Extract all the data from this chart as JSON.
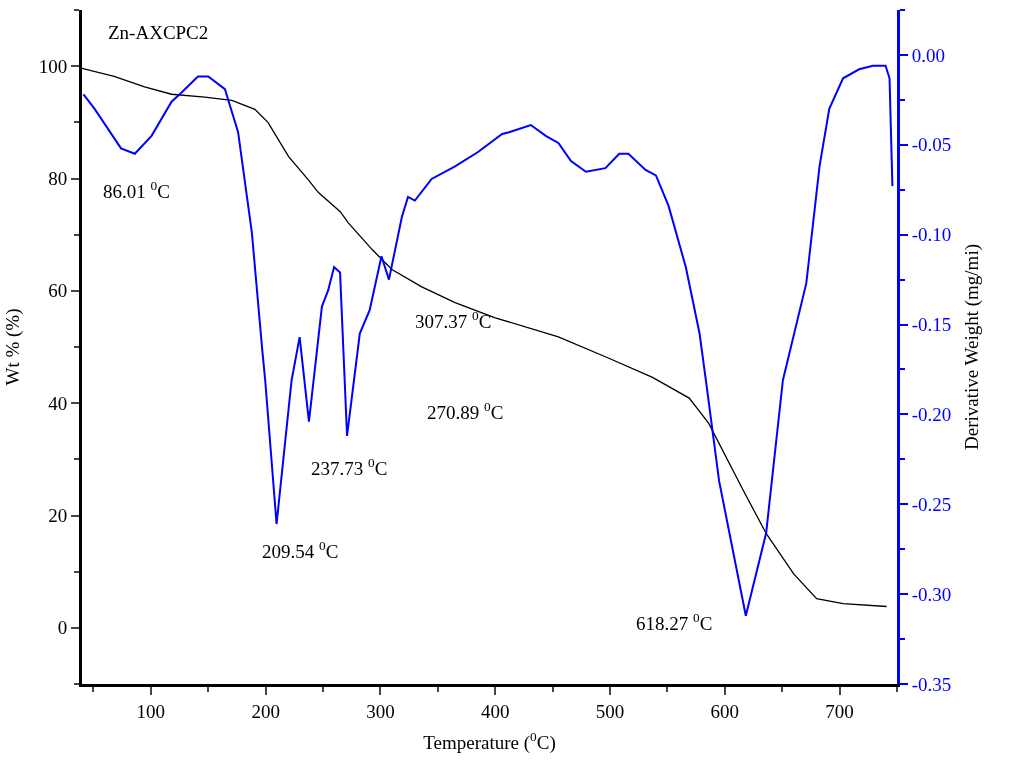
{
  "chart_data": {
    "type": "line",
    "title": "Zn-AXCPC2",
    "xlabel": "Temperature ($^{0}$C)",
    "ylabel": "Wt % (%)",
    "y2label": "Derivative Weight (mg/mi)",
    "xlim": [
      40,
      750
    ],
    "xticks": [
      100,
      200,
      300,
      400,
      500,
      600,
      700
    ],
    "ylim": [
      -10,
      110
    ],
    "yticks": [
      0,
      20,
      40,
      60,
      80,
      100
    ],
    "y2lim": [
      -0.35,
      0.025
    ],
    "y2ticks": [
      {
        "value": -0.35,
        "label": "-0.35"
      },
      {
        "value": -0.3,
        "label": "-0.30"
      },
      {
        "value": -0.25,
        "label": "-0.25"
      },
      {
        "value": -0.2,
        "label": "-0.20"
      },
      {
        "value": -0.15,
        "label": "-0.15"
      },
      {
        "value": -0.1,
        "label": "-0.10"
      },
      {
        "value": -0.05,
        "label": "-0.05"
      },
      {
        "value": 0,
        "label": "0.00"
      }
    ],
    "series": [
      {
        "color": "#000000",
        "x": [
          40,
          68,
          94.5,
          118,
          147,
          170.6,
          190.6,
          202,
          220,
          237,
          246,
          265,
          272,
          293,
          310,
          336,
          365,
          400,
          455,
          499,
          537,
          569,
          586,
          616,
          636,
          660,
          680,
          703,
          741
        ],
        "values": [
          99.6,
          98.2,
          96.3,
          95.0,
          94.5,
          93.9,
          92.3,
          90,
          83.9,
          79.8,
          77.5,
          74.1,
          72.1,
          67.3,
          63.8,
          60.7,
          57.9,
          55.2,
          51.8,
          48.0,
          44.6,
          40.9,
          36.4,
          24.5,
          16.8,
          9.6,
          5.2,
          4.3,
          3.8
        ]
      },
      {
        "color": "#0000ff",
        "axis": "y2",
        "x": [
          41.3,
          51,
          74,
          86,
          100.6,
          118,
          126.5,
          141,
          150,
          164.5,
          176,
          188,
          197,
          199.6,
          209.5,
          222.6,
          229.6,
          237.7,
          249,
          254.4,
          259.6,
          264.8,
          270.9,
          282,
          290.6,
          300.9,
          307.4,
          318.7,
          324,
          330,
          344.6,
          365,
          385,
          406,
          412,
          431,
          444,
          455,
          466,
          479,
          496,
          508,
          516,
          531,
          540,
          551,
          566,
          578,
          583.5,
          595,
          618.3,
          636,
          650.6,
          671,
          682.5,
          691,
          703,
          717,
          729,
          740,
          743.5,
          746
        ],
        "values": [
          -0.022,
          -0.03,
          -0.052,
          -0.055,
          -0.045,
          -0.026,
          -0.021,
          -0.012,
          -0.012,
          -0.019,
          -0.043,
          -0.099,
          -0.164,
          -0.181,
          -0.261,
          -0.181,
          -0.157,
          -0.204,
          -0.14,
          -0.131,
          -0.118,
          -0.121,
          -0.212,
          -0.155,
          -0.142,
          -0.112,
          -0.125,
          -0.09,
          -0.079,
          -0.081,
          -0.069,
          -0.062,
          -0.054,
          -0.044,
          -0.043,
          -0.039,
          -0.045,
          -0.049,
          -0.059,
          -0.065,
          -0.063,
          -0.055,
          -0.055,
          -0.064,
          -0.067,
          -0.084,
          -0.118,
          -0.155,
          -0.181,
          -0.237,
          -0.312,
          -0.266,
          -0.181,
          -0.127,
          -0.062,
          -0.03,
          -0.013,
          -0.008,
          -0.006,
          -0.006,
          -0.013,
          -0.073
        ]
      }
    ],
    "annotations": [
      "86.01 $^{0}$C",
      "209.54 $^{0}$C",
      "237.73 $^{0}$C",
      "270.89 $^{0}$C",
      "307.37 $^{0}$C",
      "618.27 $^{0}$C"
    ]
  }
}
